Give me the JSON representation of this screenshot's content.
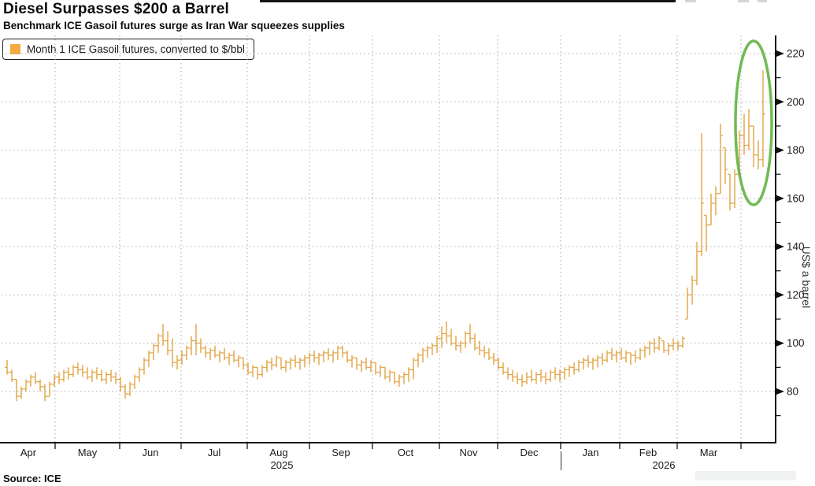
{
  "header": {
    "title": "Diesel Surpasses $200 a Barrel",
    "subtitle": "Benchmark ICE Gasoil futures surge as Iran War squeezes supplies"
  },
  "legend": {
    "label": "Month 1 ICE Gasoil futures, converted to $/bbl",
    "swatch_color": "#F4A93F"
  },
  "source": "Source: ICE",
  "colors": {
    "bar": "#E0A443",
    "annotation_green": "#5CB23E",
    "grid": "#A9A9A9",
    "axis": "#111111",
    "text": "#1A1A1A"
  },
  "chart_data": {
    "type": "bar",
    "subtype": "ohlc-daily",
    "title": "Diesel Surpasses $200 a Barrel",
    "series_name": "Month 1 ICE Gasoil futures, converted to $/bbl",
    "xlabel": "",
    "ylabel": "US$ a barrel",
    "ylim": [
      60,
      227
    ],
    "grid": "dotted-both",
    "legend_position": "top-left",
    "yticks_major": [
      80,
      100,
      120,
      140,
      160,
      180,
      200,
      220
    ],
    "yticks_minor": [
      70,
      90,
      110,
      130,
      150,
      170,
      190,
      210
    ],
    "x_months": [
      "Apr",
      "May",
      "Jun",
      "Jul",
      "Aug",
      "Sep",
      "Oct",
      "Nov",
      "Dec",
      "Jan",
      "Feb",
      "Mar"
    ],
    "x_years": [
      {
        "label": "2025",
        "under_month": "Aug"
      },
      {
        "label": "2026",
        "under_month": "Feb"
      }
    ],
    "annotation": {
      "shape": "ellipse",
      "meaning": "highlights final surge above $200"
    },
    "bars_format": [
      "low",
      "high",
      "close"
    ],
    "bars": [
      [
        87,
        93,
        88
      ],
      [
        84,
        89,
        85
      ],
      [
        76,
        85,
        78
      ],
      [
        77,
        82,
        81
      ],
      [
        80,
        85,
        84
      ],
      [
        82,
        87,
        86
      ],
      [
        83,
        88,
        84
      ],
      [
        80,
        85,
        82
      ],
      [
        76,
        83,
        78
      ],
      [
        78,
        84,
        83
      ],
      [
        82,
        87,
        86
      ],
      [
        83,
        88,
        85
      ],
      [
        84,
        89,
        88
      ],
      [
        85,
        90,
        87
      ],
      [
        86,
        91,
        90
      ],
      [
        87,
        92,
        89
      ],
      [
        86,
        91,
        88
      ],
      [
        85,
        90,
        86
      ],
      [
        84,
        89,
        88
      ],
      [
        85,
        90,
        87
      ],
      [
        84,
        89,
        85
      ],
      [
        83,
        88,
        87
      ],
      [
        84,
        89,
        86
      ],
      [
        83,
        88,
        85
      ],
      [
        80,
        86,
        82
      ],
      [
        77,
        83,
        79
      ],
      [
        78,
        84,
        83
      ],
      [
        81,
        87,
        86
      ],
      [
        84,
        90,
        89
      ],
      [
        87,
        94,
        93
      ],
      [
        90,
        97,
        96
      ],
      [
        93,
        100,
        99
      ],
      [
        96,
        104,
        103
      ],
      [
        99,
        108,
        101
      ],
      [
        95,
        105,
        97
      ],
      [
        90,
        102,
        92
      ],
      [
        89,
        95,
        93
      ],
      [
        91,
        97,
        95
      ],
      [
        93,
        99,
        98
      ],
      [
        95,
        103,
        101
      ],
      [
        95,
        108,
        100
      ],
      [
        96,
        102,
        98
      ],
      [
        94,
        99,
        96
      ],
      [
        93,
        98,
        97
      ],
      [
        94,
        99,
        95
      ],
      [
        92,
        97,
        96
      ],
      [
        93,
        98,
        94
      ],
      [
        91,
        96,
        95
      ],
      [
        92,
        97,
        93
      ],
      [
        90,
        95,
        94
      ],
      [
        89,
        94,
        91
      ],
      [
        87,
        92,
        88
      ],
      [
        86,
        91,
        90
      ],
      [
        85,
        90,
        87
      ],
      [
        86,
        91,
        90
      ],
      [
        88,
        93,
        92
      ],
      [
        89,
        94,
        91
      ],
      [
        90,
        95,
        94
      ],
      [
        89,
        94,
        90
      ],
      [
        88,
        93,
        92
      ],
      [
        89,
        94,
        93
      ],
      [
        90,
        95,
        92
      ],
      [
        89,
        94,
        93
      ],
      [
        90,
        95,
        94
      ],
      [
        91,
        96,
        95
      ],
      [
        92,
        97,
        94
      ],
      [
        91,
        96,
        95
      ],
      [
        92,
        97,
        96
      ],
      [
        93,
        98,
        95
      ],
      [
        92,
        97,
        96
      ],
      [
        93,
        99,
        98
      ],
      [
        94,
        99,
        96
      ],
      [
        92,
        97,
        93
      ],
      [
        90,
        95,
        94
      ],
      [
        89,
        94,
        91
      ],
      [
        88,
        93,
        92
      ],
      [
        89,
        94,
        90
      ],
      [
        88,
        93,
        92
      ],
      [
        87,
        92,
        88
      ],
      [
        86,
        91,
        90
      ],
      [
        85,
        90,
        86
      ],
      [
        84,
        89,
        88
      ],
      [
        83,
        88,
        84
      ],
      [
        82,
        87,
        86
      ],
      [
        83,
        88,
        87
      ],
      [
        84,
        90,
        89
      ],
      [
        85,
        94,
        93
      ],
      [
        90,
        96,
        95
      ],
      [
        92,
        98,
        97
      ],
      [
        94,
        99,
        98
      ],
      [
        95,
        100,
        99
      ],
      [
        96,
        103,
        102
      ],
      [
        98,
        107,
        104
      ],
      [
        100,
        109,
        103
      ],
      [
        99,
        106,
        100
      ],
      [
        97,
        103,
        99
      ],
      [
        96,
        101,
        100
      ],
      [
        98,
        105,
        104
      ],
      [
        100,
        108,
        102
      ],
      [
        97,
        104,
        98
      ],
      [
        95,
        101,
        97
      ],
      [
        94,
        99,
        96
      ],
      [
        93,
        98,
        94
      ],
      [
        91,
        96,
        93
      ],
      [
        89,
        94,
        90
      ],
      [
        87,
        92,
        88
      ],
      [
        85,
        90,
        87
      ],
      [
        84,
        89,
        86
      ],
      [
        83,
        88,
        85
      ],
      [
        82,
        87,
        84
      ],
      [
        83,
        88,
        86
      ],
      [
        84,
        89,
        85
      ],
      [
        83,
        88,
        87
      ],
      [
        84,
        89,
        86
      ],
      [
        83,
        88,
        85
      ],
      [
        84,
        89,
        88
      ],
      [
        85,
        90,
        87
      ],
      [
        84,
        89,
        88
      ],
      [
        85,
        90,
        89
      ],
      [
        86,
        91,
        90
      ],
      [
        87,
        92,
        89
      ],
      [
        88,
        93,
        92
      ],
      [
        89,
        94,
        93
      ],
      [
        90,
        95,
        92
      ],
      [
        89,
        94,
        93
      ],
      [
        90,
        95,
        94
      ],
      [
        91,
        96,
        93
      ],
      [
        92,
        97,
        96
      ],
      [
        93,
        98,
        95
      ],
      [
        92,
        97,
        96
      ],
      [
        93,
        98,
        94
      ],
      [
        92,
        97,
        96
      ],
      [
        91,
        96,
        95
      ],
      [
        92,
        97,
        94
      ],
      [
        93,
        98,
        97
      ],
      [
        94,
        99,
        98
      ],
      [
        95,
        101,
        100
      ],
      [
        96,
        102,
        98
      ],
      [
        97,
        103,
        102
      ],
      [
        96,
        101,
        97
      ],
      [
        95,
        100,
        99
      ],
      [
        97,
        102,
        100
      ],
      [
        97,
        101,
        99
      ],
      [
        98,
        103,
        102
      ],
      [
        110,
        123,
        120
      ],
      [
        116,
        128,
        126
      ],
      [
        124,
        142,
        138
      ],
      [
        136,
        187,
        158
      ],
      [
        138,
        153,
        149
      ],
      [
        149,
        162,
        158
      ],
      [
        153,
        165,
        162
      ],
      [
        162,
        191,
        186
      ],
      [
        166,
        181,
        172
      ],
      [
        155,
        170,
        158
      ],
      [
        156,
        172,
        170
      ],
      [
        170,
        188,
        186
      ],
      [
        178,
        195,
        182
      ],
      [
        180,
        197,
        190
      ],
      [
        173,
        190,
        178
      ],
      [
        172,
        184,
        176
      ],
      [
        173,
        213,
        195
      ]
    ]
  }
}
